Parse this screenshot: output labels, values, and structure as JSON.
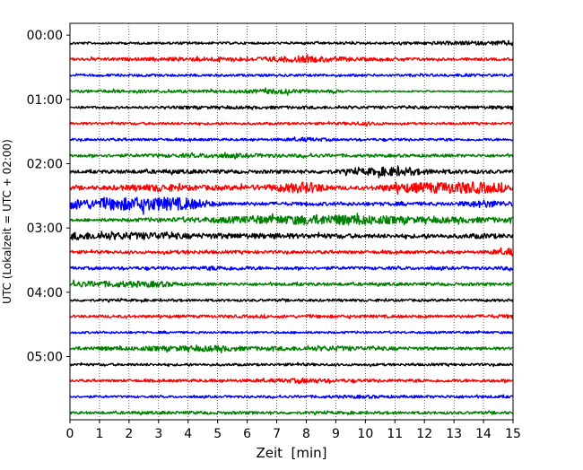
{
  "chart_data": {
    "type": "line",
    "xlabel": "Zeit  [min]",
    "ylabel": "UTC (Lokalzeit = UTC + 02:00)",
    "xlim": [
      0,
      15
    ],
    "x_ticks": [
      0,
      1,
      2,
      3,
      4,
      5,
      6,
      7,
      8,
      9,
      10,
      11,
      12,
      13,
      14,
      15
    ],
    "x_tick_labels": [
      "0",
      "1",
      "2",
      "3",
      "4",
      "5",
      "6",
      "7",
      "8",
      "9",
      "10",
      "11",
      "12",
      "13",
      "14",
      "15"
    ],
    "y_tick_labels": [
      "00:00",
      "01:00",
      "02:00",
      "03:00",
      "04:00",
      "05:00"
    ],
    "y_ticks_min": [
      0,
      60,
      120,
      180,
      240,
      300
    ],
    "ylim_min": [
      -11,
      359
    ],
    "y_inverted": true,
    "grid": "vertical dotted at x ticks",
    "legend": "none",
    "trace_colors": [
      "#000000",
      "#ff0000",
      "#0000ff",
      "#008000"
    ],
    "traces": [
      {
        "start_min": 0,
        "color": "#000000",
        "amplitude": [
          0.18,
          0.16,
          0.17,
          0.16,
          0.18,
          0.16,
          0.17,
          0.16,
          0.17,
          0.18,
          0.17,
          0.2,
          0.24,
          0.28,
          0.28,
          0.4
        ]
      },
      {
        "start_min": 15,
        "color": "#ff0000",
        "amplitude": [
          0.2,
          0.22,
          0.22,
          0.26,
          0.3,
          0.34,
          0.3,
          0.4,
          0.5,
          0.36,
          0.26,
          0.26,
          0.22,
          0.2,
          0.2,
          0.2
        ]
      },
      {
        "start_min": 30,
        "color": "#0000ff",
        "amplitude": [
          0.18,
          0.18,
          0.18,
          0.18,
          0.18,
          0.18,
          0.18,
          0.18,
          0.18,
          0.18,
          0.18,
          0.18,
          0.18,
          0.22,
          0.2,
          0.2
        ]
      },
      {
        "start_min": 45,
        "color": "#008000",
        "amplitude": [
          0.2,
          0.22,
          0.22,
          0.22,
          0.22,
          0.22,
          0.26,
          0.4,
          0.26,
          0.22,
          0.1,
          0.1,
          0.1,
          0.1,
          0.1,
          0.1
        ]
      },
      {
        "start_min": 60,
        "color": "#000000",
        "amplitude": [
          0.18,
          0.18,
          0.18,
          0.18,
          0.22,
          0.22,
          0.22,
          0.22,
          0.22,
          0.22,
          0.22,
          0.22,
          0.22,
          0.22,
          0.24,
          0.28
        ]
      },
      {
        "start_min": 75,
        "color": "#ff0000",
        "amplitude": [
          0.18,
          0.18,
          0.18,
          0.18,
          0.18,
          0.18,
          0.18,
          0.18,
          0.18,
          0.18,
          0.3,
          0.16,
          0.16,
          0.16,
          0.16,
          0.16
        ]
      },
      {
        "start_min": 90,
        "color": "#0000ff",
        "amplitude": [
          0.18,
          0.18,
          0.18,
          0.18,
          0.18,
          0.18,
          0.18,
          0.18,
          0.3,
          0.18,
          0.18,
          0.18,
          0.18,
          0.18,
          0.18,
          0.18
        ]
      },
      {
        "start_min": 105,
        "color": "#008000",
        "amplitude": [
          0.2,
          0.22,
          0.22,
          0.26,
          0.3,
          0.36,
          0.3,
          0.26,
          0.26,
          0.24,
          0.22,
          0.22,
          0.22,
          0.22,
          0.22,
          0.22
        ]
      },
      {
        "start_min": 120,
        "color": "#000000",
        "amplitude": [
          0.22,
          0.24,
          0.28,
          0.3,
          0.3,
          0.28,
          0.26,
          0.26,
          0.26,
          0.3,
          0.5,
          0.7,
          0.4,
          0.3,
          0.28,
          0.26
        ]
      },
      {
        "start_min": 135,
        "color": "#ff0000",
        "amplitude": [
          0.26,
          0.3,
          0.4,
          0.55,
          0.4,
          0.36,
          0.4,
          0.5,
          0.9,
          0.3,
          0.26,
          0.6,
          0.8,
          0.9,
          0.85,
          0.5
        ]
      },
      {
        "start_min": 150,
        "color": "#0000ff",
        "amplitude": [
          0.75,
          0.75,
          1.0,
          1.0,
          0.9,
          0.3,
          0.26,
          0.26,
          0.26,
          0.26,
          0.26,
          0.26,
          0.26,
          0.26,
          0.6,
          0.3
        ]
      },
      {
        "start_min": 165,
        "color": "#008000",
        "amplitude": [
          0.2,
          0.22,
          0.26,
          0.3,
          0.36,
          0.45,
          0.55,
          0.6,
          0.75,
          0.8,
          0.75,
          0.55,
          0.45,
          0.45,
          0.4,
          0.38
        ]
      },
      {
        "start_min": 180,
        "color": "#000000",
        "amplitude": [
          0.6,
          0.55,
          0.55,
          0.55,
          0.4,
          0.4,
          0.4,
          0.4,
          0.35,
          0.35,
          0.3,
          0.3,
          0.3,
          0.3,
          0.4,
          0.3
        ]
      },
      {
        "start_min": 195,
        "color": "#ff0000",
        "amplitude": [
          0.22,
          0.22,
          0.22,
          0.22,
          0.28,
          0.22,
          0.22,
          0.22,
          0.22,
          0.22,
          0.22,
          0.22,
          0.22,
          0.22,
          0.22,
          0.55
        ]
      },
      {
        "start_min": 210,
        "color": "#0000ff",
        "amplitude": [
          0.2,
          0.22,
          0.22,
          0.22,
          0.22,
          0.35,
          0.28,
          0.22,
          0.22,
          0.22,
          0.22,
          0.22,
          0.22,
          0.22,
          0.22,
          0.3
        ]
      },
      {
        "start_min": 225,
        "color": "#008000",
        "amplitude": [
          0.45,
          0.45,
          0.45,
          0.45,
          0.22,
          0.22,
          0.22,
          0.22,
          0.22,
          0.22,
          0.22,
          0.22,
          0.22,
          0.22,
          0.22,
          0.22
        ]
      },
      {
        "start_min": 240,
        "color": "#000000",
        "amplitude": [
          0.18,
          0.18,
          0.18,
          0.18,
          0.18,
          0.18,
          0.18,
          0.18,
          0.18,
          0.18,
          0.18,
          0.18,
          0.18,
          0.18,
          0.18,
          0.2
        ]
      },
      {
        "start_min": 255,
        "color": "#ff0000",
        "amplitude": [
          0.2,
          0.2,
          0.2,
          0.2,
          0.2,
          0.22,
          0.22,
          0.22,
          0.22,
          0.22,
          0.22,
          0.22,
          0.22,
          0.22,
          0.24,
          0.3
        ]
      },
      {
        "start_min": 270,
        "color": "#0000ff",
        "amplitude": [
          0.16,
          0.16,
          0.16,
          0.16,
          0.16,
          0.16,
          0.16,
          0.16,
          0.16,
          0.16,
          0.16,
          0.16,
          0.16,
          0.16,
          0.16,
          0.16
        ]
      },
      {
        "start_min": 285,
        "color": "#008000",
        "amplitude": [
          0.26,
          0.3,
          0.3,
          0.35,
          0.4,
          0.45,
          0.3,
          0.32,
          0.32,
          0.4,
          0.3,
          0.26,
          0.24,
          0.22,
          0.22,
          0.22
        ]
      },
      {
        "start_min": 300,
        "color": "#000000",
        "amplitude": [
          0.18,
          0.18,
          0.18,
          0.18,
          0.18,
          0.18,
          0.18,
          0.18,
          0.2,
          0.18,
          0.18,
          0.18,
          0.18,
          0.18,
          0.18,
          0.18
        ]
      },
      {
        "start_min": 315,
        "color": "#ff0000",
        "amplitude": [
          0.18,
          0.18,
          0.2,
          0.2,
          0.2,
          0.22,
          0.22,
          0.26,
          0.4,
          0.26,
          0.22,
          0.22,
          0.22,
          0.22,
          0.22,
          0.22
        ]
      },
      {
        "start_min": 330,
        "color": "#0000ff",
        "amplitude": [
          0.16,
          0.16,
          0.16,
          0.16,
          0.16,
          0.16,
          0.18,
          0.18,
          0.2,
          0.22,
          0.26,
          0.2,
          0.2,
          0.22,
          0.2,
          0.2
        ]
      },
      {
        "start_min": 345,
        "color": "#008000",
        "amplitude": [
          0.18,
          0.18,
          0.2,
          0.22,
          0.22,
          0.22,
          0.22,
          0.2,
          0.2,
          0.2,
          0.2,
          0.2,
          0.2,
          0.2,
          0.2,
          0.2
        ]
      }
    ]
  }
}
